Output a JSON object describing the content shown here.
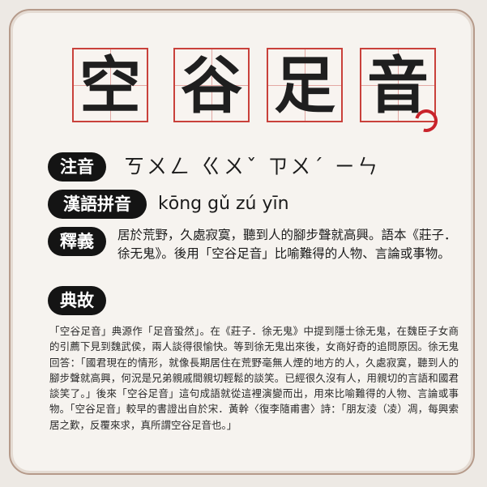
{
  "title_chars": [
    "空",
    "谷",
    "足",
    "音"
  ],
  "zhuyin": {
    "label": "注音",
    "value": "ㄎㄨㄥ ㄍㄨˇ ㄗㄨˊ ㄧㄣ"
  },
  "pinyin": {
    "label": "漢語拼音",
    "value": "kōng gǔ zú yīn"
  },
  "meaning": {
    "label": "釋義",
    "value": "居於荒野，久處寂寞，聽到人的腳步聲就高興。語本《莊子．徐无鬼》。後用「空谷足音」比喻難得的人物、言論或事物。"
  },
  "origin": {
    "label": "典故",
    "value": "「空谷足音」典源作「足音蛩然」。在《莊子．徐无鬼》中提到隱士徐无鬼，在魏臣子女商的引薦下見到魏武侯，兩人談得很愉快。等到徐无鬼出來後，女商好奇的追問原因。徐无鬼回答：「國君現在的情形，就像長期居住在荒野毫無人煙的地方的人，久處寂寞，聽到人的腳步聲就高興，何況是兄弟親戚間親切輕鬆的談笑。已經很久沒有人，用親切的言語和國君談笑了。」後來「空谷足音」這句成語就從這裡演變而出，用來比喻難得的人物、言論或事物。「空谷足音」較早的書證出自於宋．黃幹〈復李隨甫書〉詩：「朋友淩（凌）凋，每興索居之歎，反覆來求，真所謂空谷足音也。」"
  },
  "colors": {
    "accent_red": "#c9413b",
    "label_bg": "#141414",
    "card_border": "#b59a8a"
  },
  "icons": {
    "seal": "red-brush-circle-icon"
  }
}
